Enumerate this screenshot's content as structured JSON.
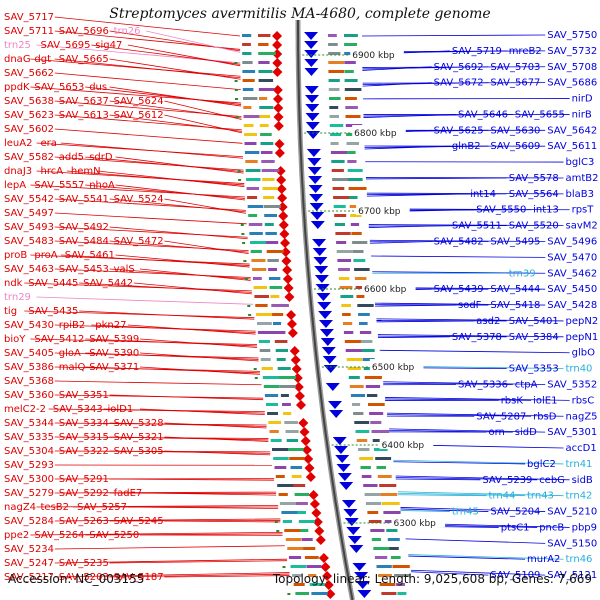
{
  "title": "Streptomyces avermitilis MA-4680, complete genome",
  "footer": {
    "accession": "Accession: NC_003155",
    "summary": "Topology: linear; Length: 9,025,608 bp; Genes: 7,669"
  },
  "colors": {
    "left_gene": "#e00000",
    "right_gene": "#0000dd",
    "rna": "#ef86c6",
    "trna": "#22b0d8",
    "scale_tick": "#2a8a2a"
  },
  "scale_labels": [
    "6900 kbp",
    "6800 kbp",
    "6700 kbp",
    "6600 kbp",
    "6500 kbp",
    "6400 kbp",
    "6300 kbp"
  ],
  "left_labels": [
    {
      "text": "SAV_5717",
      "c": "red"
    },
    {
      "text": "SAV_5711",
      "c": "red"
    },
    {
      "text": "SAV_5696",
      "c": "red"
    },
    {
      "text": "trn26",
      "c": "pink"
    },
    {
      "text": "trn25",
      "c": "pink"
    },
    {
      "text": "SAV_5695",
      "c": "red"
    },
    {
      "text": "sig47",
      "c": "red"
    },
    {
      "text": "dnaG",
      "c": "red"
    },
    {
      "text": "dgt",
      "c": "red"
    },
    {
      "text": "SAV_5665",
      "c": "red"
    },
    {
      "text": "SAV_5662",
      "c": "red"
    },
    {
      "text": "ppdK",
      "c": "red"
    },
    {
      "text": "SAV_5653",
      "c": "red"
    },
    {
      "text": "dus",
      "c": "red"
    },
    {
      "text": "SAV_5638",
      "c": "red"
    },
    {
      "text": "SAV_5637",
      "c": "red"
    },
    {
      "text": "SAV_5624",
      "c": "red"
    },
    {
      "text": "SAV_5623",
      "c": "red"
    },
    {
      "text": "SAV_5613",
      "c": "red"
    },
    {
      "text": "SAV_5612",
      "c": "red"
    },
    {
      "text": "SAV_5602",
      "c": "red"
    },
    {
      "text": "leuA2",
      "c": "red"
    },
    {
      "text": "era",
      "c": "red"
    },
    {
      "text": "SAV_5582",
      "c": "red"
    },
    {
      "text": "add5",
      "c": "red"
    },
    {
      "text": "sdrD",
      "c": "red"
    },
    {
      "text": "dnaJ3",
      "c": "red"
    },
    {
      "text": "hrcA",
      "c": "red"
    },
    {
      "text": "hemN",
      "c": "red"
    },
    {
      "text": "lepA",
      "c": "red"
    },
    {
      "text": "SAV_5557",
      "c": "red"
    },
    {
      "text": "nhoA",
      "c": "red"
    },
    {
      "text": "SAV_5542",
      "c": "red"
    },
    {
      "text": "SAV_5541",
      "c": "red"
    },
    {
      "text": "SAV_5524",
      "c": "red"
    },
    {
      "text": "SAV_5497",
      "c": "red"
    },
    {
      "text": "SAV_5493",
      "c": "red"
    },
    {
      "text": "SAV_5492",
      "c": "red"
    },
    {
      "text": "SAV_5483",
      "c": "red"
    },
    {
      "text": "SAV_5484",
      "c": "red"
    },
    {
      "text": "SAV_5472",
      "c": "red"
    },
    {
      "text": "proB",
      "c": "red"
    },
    {
      "text": "proA",
      "c": "red"
    },
    {
      "text": "SAV_5461",
      "c": "red"
    },
    {
      "text": "SAV_5463",
      "c": "red"
    },
    {
      "text": "SAV_5453",
      "c": "red"
    },
    {
      "text": "valS",
      "c": "red"
    },
    {
      "text": "ndk",
      "c": "red"
    },
    {
      "text": "SAV_5445",
      "c": "red"
    },
    {
      "text": "SAV_5442",
      "c": "red"
    },
    {
      "text": "trn29",
      "c": "pink"
    },
    {
      "text": "tig",
      "c": "red"
    },
    {
      "text": "SAV_5435",
      "c": "red"
    },
    {
      "text": "SAV_5430",
      "c": "red"
    },
    {
      "text": "rpiB2",
      "c": "red"
    },
    {
      "text": "pkn27",
      "c": "red"
    },
    {
      "text": "bioY",
      "c": "red"
    },
    {
      "text": "SAV_5412",
      "c": "red"
    },
    {
      "text": "SAV_5399",
      "c": "red"
    },
    {
      "text": "SAV_5405",
      "c": "red"
    },
    {
      "text": "gloA",
      "c": "red"
    },
    {
      "text": "SAV_5390",
      "c": "red"
    },
    {
      "text": "SAV_5386",
      "c": "red"
    },
    {
      "text": "malQ",
      "c": "red"
    },
    {
      "text": "SAV_5371",
      "c": "red"
    },
    {
      "text": "SAV_5368",
      "c": "red"
    },
    {
      "text": "SAV_5360",
      "c": "red"
    },
    {
      "text": "SAV_5351",
      "c": "red"
    },
    {
      "text": "melC2-2",
      "c": "red"
    },
    {
      "text": "SAV_5343",
      "c": "red"
    },
    {
      "text": "iolD1",
      "c": "red"
    },
    {
      "text": "SAV_5344",
      "c": "red"
    },
    {
      "text": "SAV_5334",
      "c": "red"
    },
    {
      "text": "SAV_5328",
      "c": "red"
    },
    {
      "text": "SAV_5335",
      "c": "red"
    },
    {
      "text": "SAV_5315",
      "c": "red"
    },
    {
      "text": "SAV_5321",
      "c": "red"
    },
    {
      "text": "SAV_5304",
      "c": "red"
    },
    {
      "text": "SAV_5322",
      "c": "red"
    },
    {
      "text": "SAV_5305",
      "c": "red"
    },
    {
      "text": "SAV_5293",
      "c": "red"
    },
    {
      "text": "SAV_5300",
      "c": "red"
    },
    {
      "text": "SAV_5291",
      "c": "red"
    },
    {
      "text": "SAV_5279",
      "c": "red"
    },
    {
      "text": "SAV_5292",
      "c": "red"
    },
    {
      "text": "fadE7",
      "c": "red"
    },
    {
      "text": "nagZ4",
      "c": "red"
    },
    {
      "text": "tesB2",
      "c": "red"
    },
    {
      "text": "SAV_5257",
      "c": "red"
    },
    {
      "text": "SAV_5284",
      "c": "red"
    },
    {
      "text": "SAV_5263",
      "c": "red"
    },
    {
      "text": "SAV_5245",
      "c": "red"
    },
    {
      "text": "ppe2",
      "c": "red"
    },
    {
      "text": "SAV_5264",
      "c": "red"
    },
    {
      "text": "SAV_5250",
      "c": "red"
    },
    {
      "text": "SAV_5234",
      "c": "red"
    },
    {
      "text": "SAV_5247",
      "c": "red"
    },
    {
      "text": "SAV_5235",
      "c": "red"
    },
    {
      "text": "SAV_5217",
      "c": "red"
    },
    {
      "text": "SAV_5203",
      "c": "red"
    },
    {
      "text": "SAV_5187",
      "c": "red"
    }
  ],
  "right_labels": [
    {
      "text": "SAV_5750",
      "c": "blue"
    },
    {
      "text": "SAV_5732",
      "c": "blue"
    },
    {
      "text": "mreB2",
      "c": "blue"
    },
    {
      "text": "SAV_5719",
      "c": "blue"
    },
    {
      "text": "SAV_5708",
      "c": "blue"
    },
    {
      "text": "SAV_5703",
      "c": "blue"
    },
    {
      "text": "SAV_5692",
      "c": "blue"
    },
    {
      "text": "SAV_5686",
      "c": "blue"
    },
    {
      "text": "SAV_5677",
      "c": "blue"
    },
    {
      "text": "SAV_5672",
      "c": "blue"
    },
    {
      "text": "nirD",
      "c": "blue"
    },
    {
      "text": "nirB",
      "c": "blue"
    },
    {
      "text": "SAV_5655",
      "c": "blue"
    },
    {
      "text": "SAV_5646",
      "c": "blue"
    },
    {
      "text": "SAV_5642",
      "c": "blue"
    },
    {
      "text": "SAV_5630",
      "c": "blue"
    },
    {
      "text": "SAV_5625",
      "c": "blue"
    },
    {
      "text": "SAV_5611",
      "c": "blue"
    },
    {
      "text": "SAV_5609",
      "c": "blue"
    },
    {
      "text": "glnB2",
      "c": "blue"
    },
    {
      "text": "bglC3",
      "c": "blue"
    },
    {
      "text": "amtB2",
      "c": "blue"
    },
    {
      "text": "SAV_5578",
      "c": "blue"
    },
    {
      "text": "blaB3",
      "c": "blue"
    },
    {
      "text": "SAV_5564",
      "c": "blue"
    },
    {
      "text": "int14",
      "c": "blue"
    },
    {
      "text": "rpsT",
      "c": "blue"
    },
    {
      "text": "int13",
      "c": "blue"
    },
    {
      "text": "SAV_5550",
      "c": "blue"
    },
    {
      "text": "savM2",
      "c": "blue"
    },
    {
      "text": "SAV_5520",
      "c": "blue"
    },
    {
      "text": "SAV_5511",
      "c": "blue"
    },
    {
      "text": "SAV_5496",
      "c": "blue"
    },
    {
      "text": "SAV_5495",
      "c": "blue"
    },
    {
      "text": "SAV_5482",
      "c": "blue"
    },
    {
      "text": "SAV_5470",
      "c": "blue"
    },
    {
      "text": "SAV_5462",
      "c": "blue"
    },
    {
      "text": "trn39",
      "c": "cyan"
    },
    {
      "text": "SAV_5450",
      "c": "blue"
    },
    {
      "text": "SAV_5444",
      "c": "blue"
    },
    {
      "text": "SAV_5439",
      "c": "blue"
    },
    {
      "text": "SAV_5428",
      "c": "blue"
    },
    {
      "text": "SAV_5418",
      "c": "blue"
    },
    {
      "text": "sodF",
      "c": "blue"
    },
    {
      "text": "pepN2",
      "c": "blue"
    },
    {
      "text": "SAV_5401",
      "c": "blue"
    },
    {
      "text": "asd2",
      "c": "blue"
    },
    {
      "text": "pepN1",
      "c": "blue"
    },
    {
      "text": "SAV_5384",
      "c": "blue"
    },
    {
      "text": "SAV_5378",
      "c": "blue"
    },
    {
      "text": "glbO",
      "c": "blue"
    },
    {
      "text": "trn40",
      "c": "cyan"
    },
    {
      "text": "SAV_5353",
      "c": "blue"
    },
    {
      "text": "SAV_5352",
      "c": "blue"
    },
    {
      "text": "ctpA",
      "c": "blue"
    },
    {
      "text": "SAV_5336",
      "c": "blue"
    },
    {
      "text": "rbsC",
      "c": "blue"
    },
    {
      "text": "iolE1",
      "c": "blue"
    },
    {
      "text": "rbsK",
      "c": "blue"
    },
    {
      "text": "nagZ5",
      "c": "blue"
    },
    {
      "text": "rbsD",
      "c": "blue"
    },
    {
      "text": "SAV_5287",
      "c": "blue"
    },
    {
      "text": "SAV_5301",
      "c": "blue"
    },
    {
      "text": "sidD",
      "c": "blue"
    },
    {
      "text": "orn",
      "c": "blue"
    },
    {
      "text": "accD1",
      "c": "blue"
    },
    {
      "text": "trn41",
      "c": "cyan"
    },
    {
      "text": "bglC2",
      "c": "blue"
    },
    {
      "text": "sidB",
      "c": "blue"
    },
    {
      "text": "cebG",
      "c": "blue"
    },
    {
      "text": "SAV_5239",
      "c": "blue"
    },
    {
      "text": "trn42",
      "c": "cyan"
    },
    {
      "text": "trn43",
      "c": "cyan"
    },
    {
      "text": "trn44",
      "c": "cyan"
    },
    {
      "text": "SAV_5210",
      "c": "blue"
    },
    {
      "text": "SAV_5204",
      "c": "blue"
    },
    {
      "text": "trn45",
      "c": "cyan"
    },
    {
      "text": "pbp9",
      "c": "blue"
    },
    {
      "text": "pncB",
      "c": "blue"
    },
    {
      "text": "ptsC1",
      "c": "blue"
    },
    {
      "text": "SAV_5150",
      "c": "blue"
    },
    {
      "text": "trn46",
      "c": "cyan"
    },
    {
      "text": "murA2",
      "c": "blue"
    },
    {
      "text": "SAV_5121",
      "c": "blue"
    },
    {
      "text": "SAV_5109",
      "c": "blue"
    }
  ]
}
